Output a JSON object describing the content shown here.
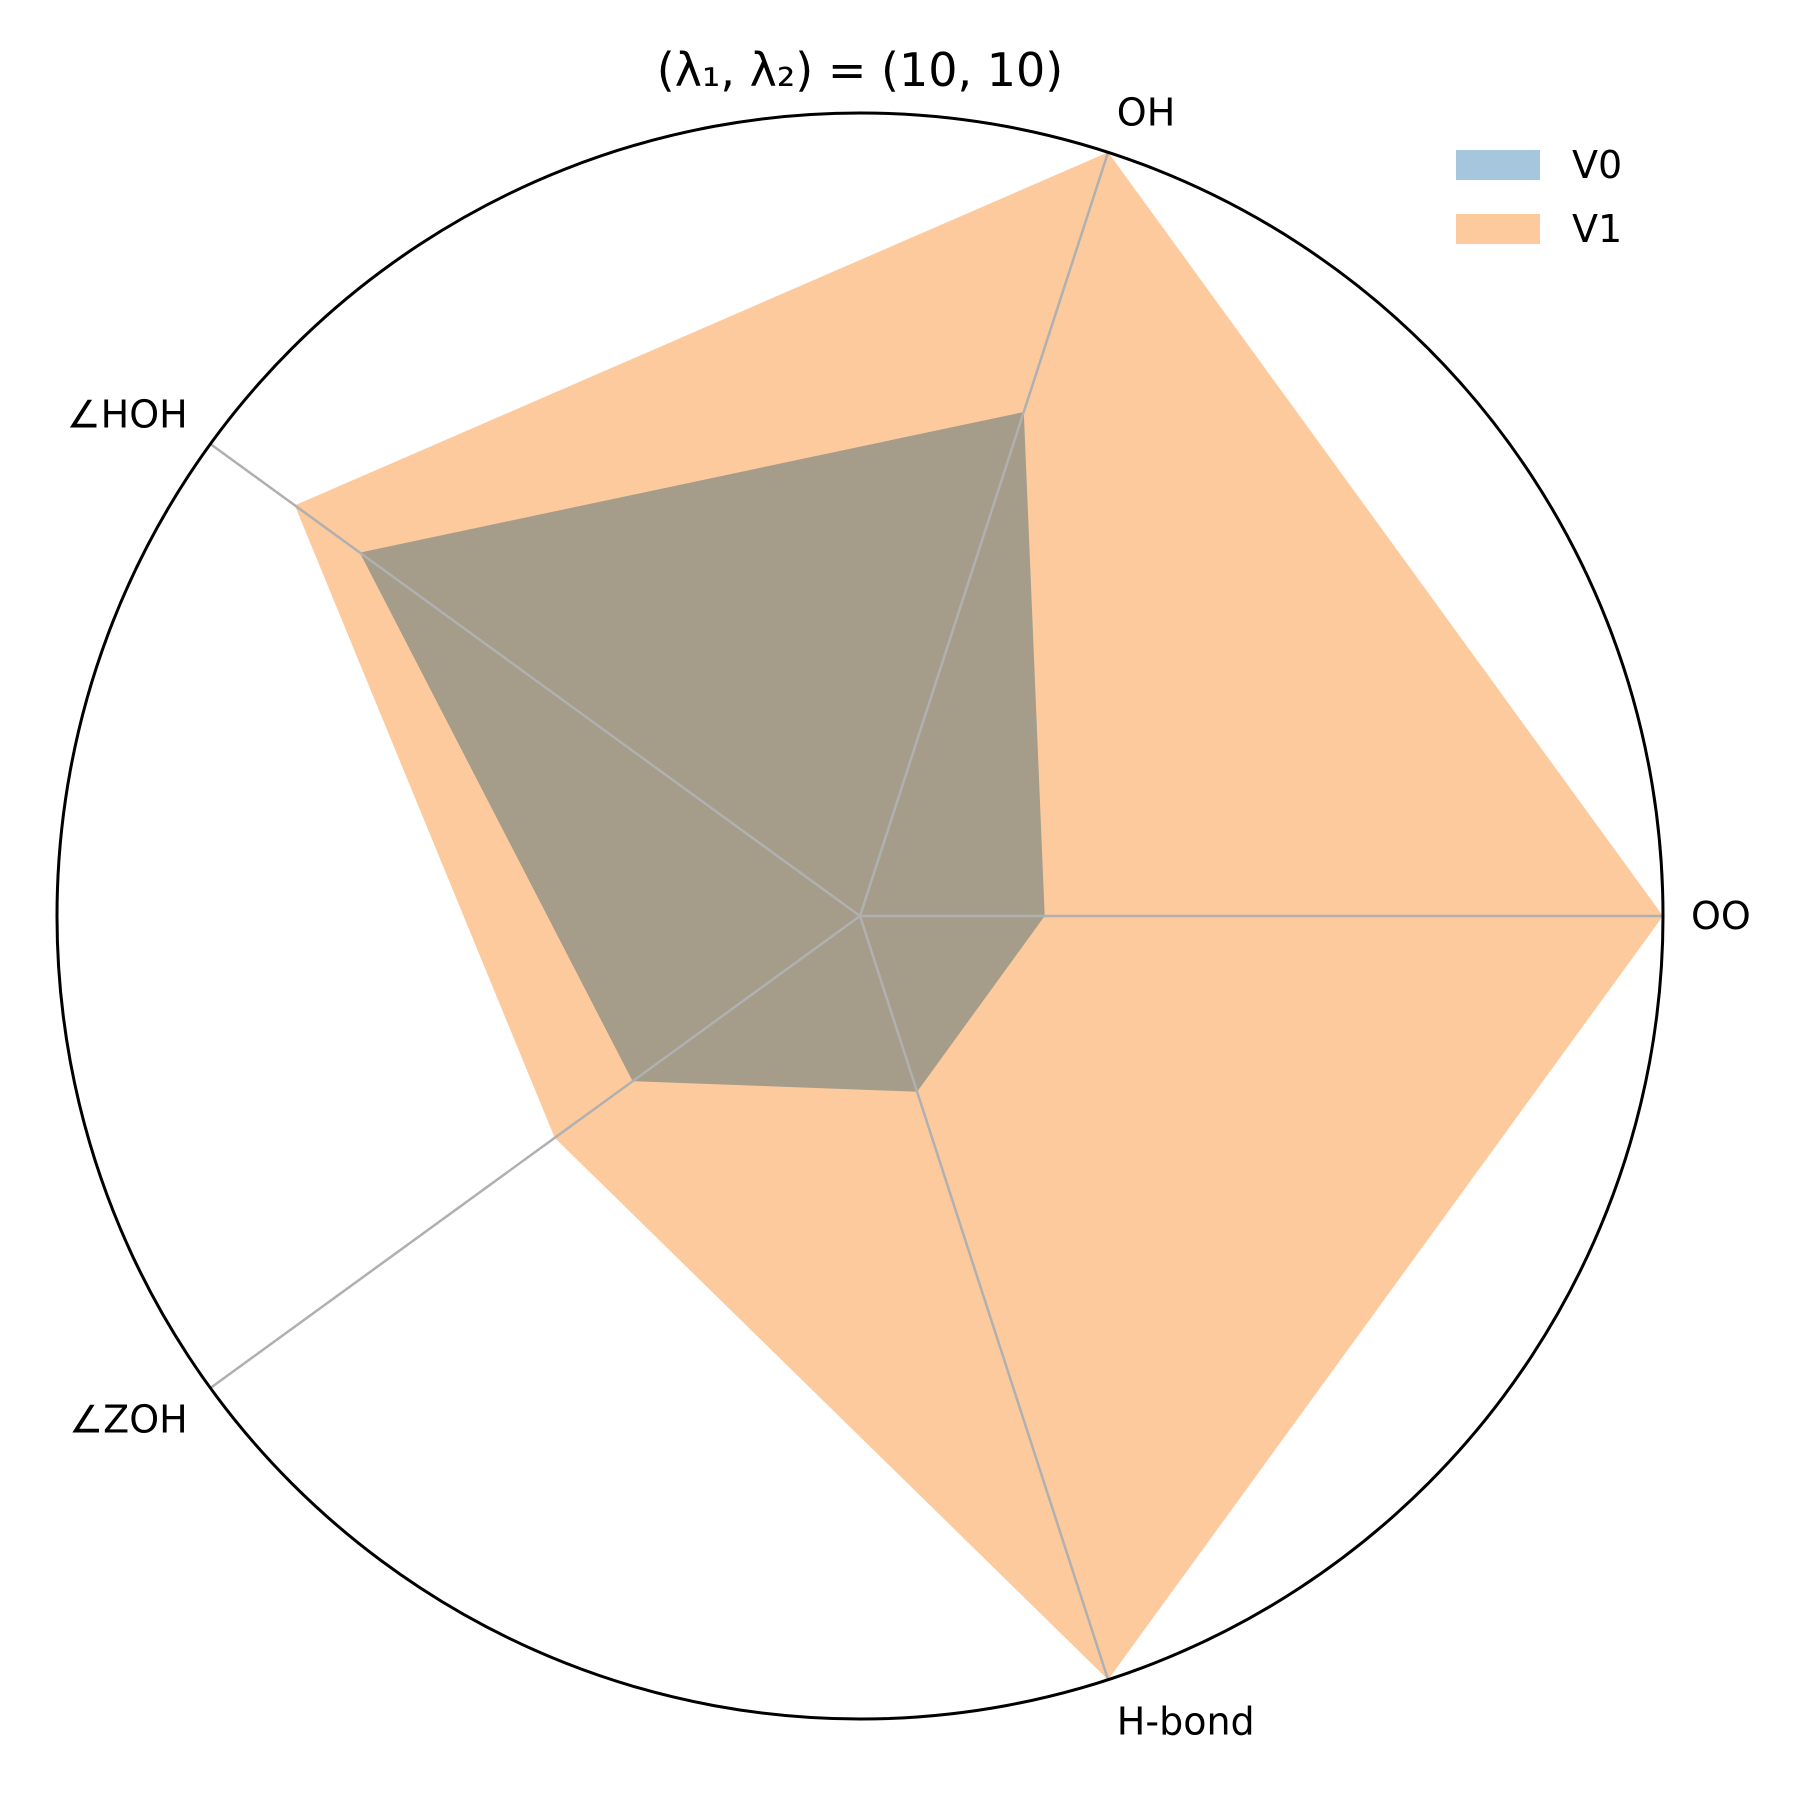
{
  "chart_data": {
    "type": "radar",
    "title": "(λ₁, λ₂) = (10, 10)",
    "axes": [
      "OO",
      "OH",
      "∠HOH",
      "∠ZOH",
      "H-bond"
    ],
    "rlim": [
      0,
      1
    ],
    "grid": false,
    "legend_position": "top-right",
    "series": [
      {
        "name": "V0",
        "color": "#a6c6de",
        "values": [
          0.23,
          0.66,
          0.77,
          0.35,
          0.23
        ]
      },
      {
        "name": "V1",
        "color": "#fdca9e",
        "values": [
          1.0,
          1.0,
          0.87,
          0.47,
          1.0
        ]
      }
    ]
  }
}
